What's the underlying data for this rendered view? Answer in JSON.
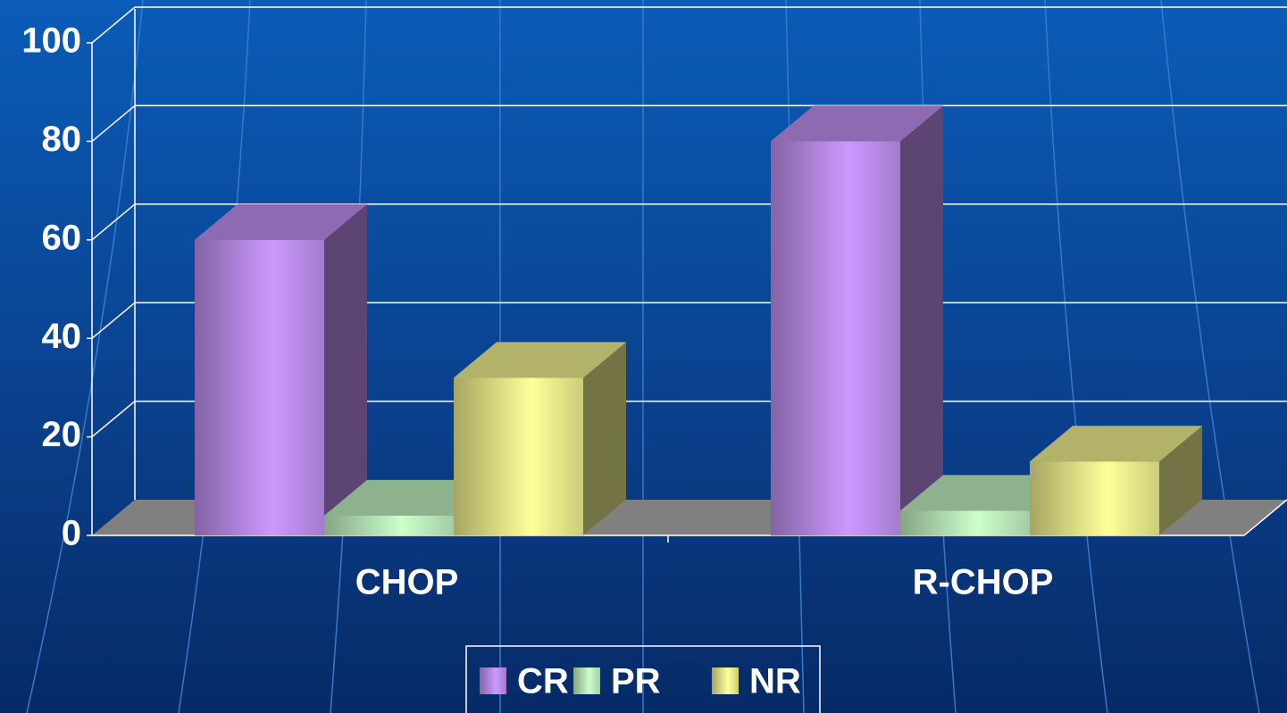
{
  "chart_data": {
    "type": "bar3d",
    "categories": [
      "CHOP",
      "R-CHOP"
    ],
    "series": [
      {
        "name": "CR",
        "color": "#cc99ff",
        "values": [
          60,
          80
        ]
      },
      {
        "name": "PR",
        "color": "#ccffcc",
        "values": [
          4,
          5
        ]
      },
      {
        "name": "NR",
        "color": "#ffff99",
        "values": [
          32,
          15
        ]
      }
    ],
    "ylim": [
      0,
      100
    ],
    "yticks": [
      0,
      20,
      40,
      60,
      80,
      100
    ],
    "grid": true,
    "legend": "bottom"
  }
}
